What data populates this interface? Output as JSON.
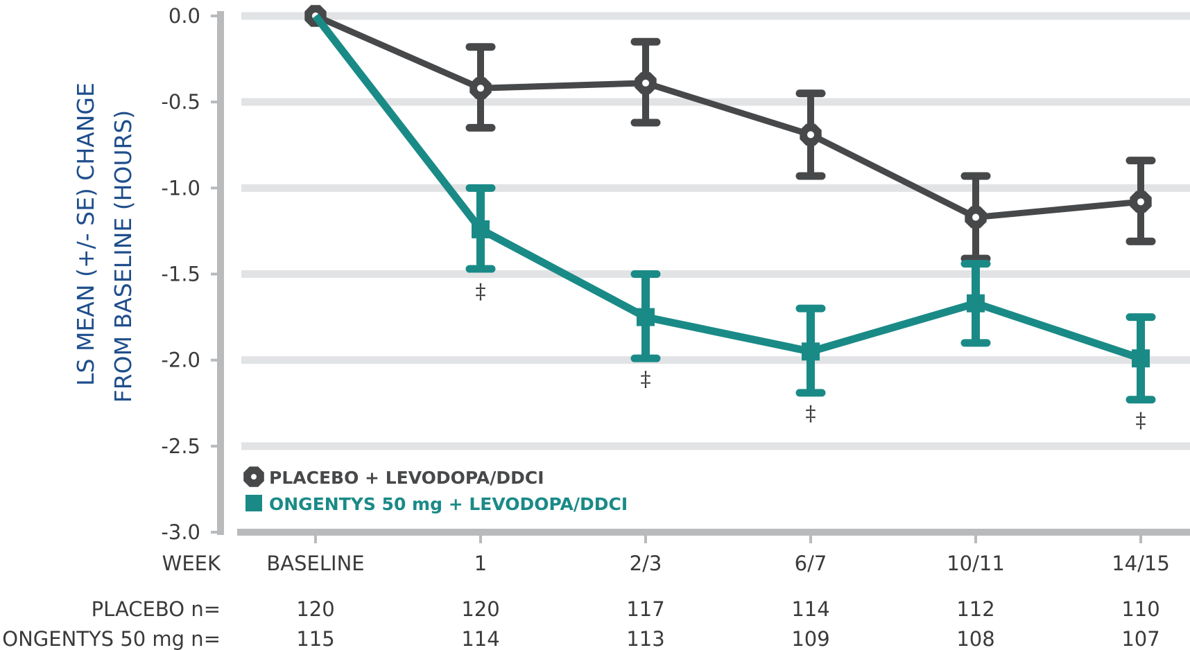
{
  "chart_data": {
    "type": "line",
    "title": "",
    "ylabel_line1": "LS MEAN (+/- SE) CHANGE",
    "ylabel_line2": "FROM BASELINE (HOURS)",
    "xlabel": "WEEK",
    "ylim": [
      -3.0,
      0.0
    ],
    "yticks": [
      "0.0",
      "-0.5",
      "-1.0",
      "-1.5",
      "-2.0",
      "-2.5",
      "-3.0"
    ],
    "ytick_values": [
      0.0,
      -0.5,
      -1.0,
      -1.5,
      -2.0,
      -2.5,
      -3.0
    ],
    "categories": [
      "BASELINE",
      "1",
      "2/3",
      "6/7",
      "10/11",
      "14/15"
    ],
    "grid": true,
    "legend_position": "bottom-left",
    "series": [
      {
        "name": "PLACEBO + LEVODOPA/DDCI",
        "color": "#47484a",
        "marker": "octagon",
        "values": [
          0.0,
          -0.42,
          -0.39,
          -0.69,
          -1.17,
          -1.08
        ],
        "err_low": [
          0.0,
          -0.65,
          -0.62,
          -0.93,
          -1.41,
          -1.31
        ],
        "err_high": [
          0.0,
          -0.18,
          -0.15,
          -0.45,
          -0.93,
          -0.84
        ]
      },
      {
        "name": "ONGENTYS 50 mg + LEVODOPA/DDCI",
        "color": "#1a8a87",
        "marker": "square",
        "values": [
          0.0,
          -1.24,
          -1.75,
          -1.95,
          -1.67,
          -1.99
        ],
        "err_low": [
          0.0,
          -1.47,
          -1.99,
          -2.19,
          -1.9,
          -2.23
        ],
        "err_high": [
          0.0,
          -1.0,
          -1.5,
          -1.7,
          -1.44,
          -1.75
        ]
      }
    ],
    "annotations": [
      {
        "category": "1",
        "y": -1.6,
        "text": "‡"
      },
      {
        "category": "2/3",
        "y": -2.11,
        "text": "‡"
      },
      {
        "category": "6/7",
        "y": -2.31,
        "text": "‡"
      },
      {
        "category": "14/15",
        "y": -2.35,
        "text": "‡"
      }
    ],
    "n_rows": [
      {
        "label": "PLACEBO n=",
        "values": [
          "120",
          "120",
          "117",
          "114",
          "112",
          "110"
        ]
      },
      {
        "label": "ONGENTYS 50 mg n=",
        "values": [
          "115",
          "114",
          "113",
          "109",
          "108",
          "107"
        ]
      }
    ]
  }
}
